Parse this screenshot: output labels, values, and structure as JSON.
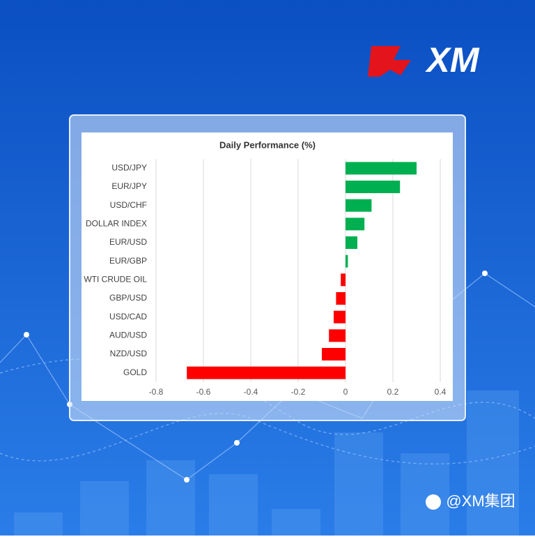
{
  "logo": "XM",
  "watermark": "@XM集团",
  "chart_data": {
    "type": "hbar",
    "title": "Daily Performance (%)",
    "categories": [
      "USD/JPY",
      "EUR/JPY",
      "USD/CHF",
      "DOLLAR INDEX",
      "EUR/USD",
      "EUR/GBP",
      "WTI CRUDE OIL",
      "GBP/USD",
      "USD/CAD",
      "AUD/USD",
      "NZD/USD",
      "GOLD"
    ],
    "values": [
      0.3,
      0.23,
      0.11,
      0.08,
      0.05,
      0.01,
      -0.02,
      -0.04,
      -0.05,
      -0.07,
      -0.1,
      -0.67
    ],
    "positive_color": "#00b050",
    "negative_color": "#ff0000",
    "xlim": [
      -0.8,
      0.4
    ],
    "xticks": [
      -0.8,
      -0.6,
      -0.4,
      -0.2,
      0,
      0.2,
      0.4
    ],
    "grid": true
  }
}
